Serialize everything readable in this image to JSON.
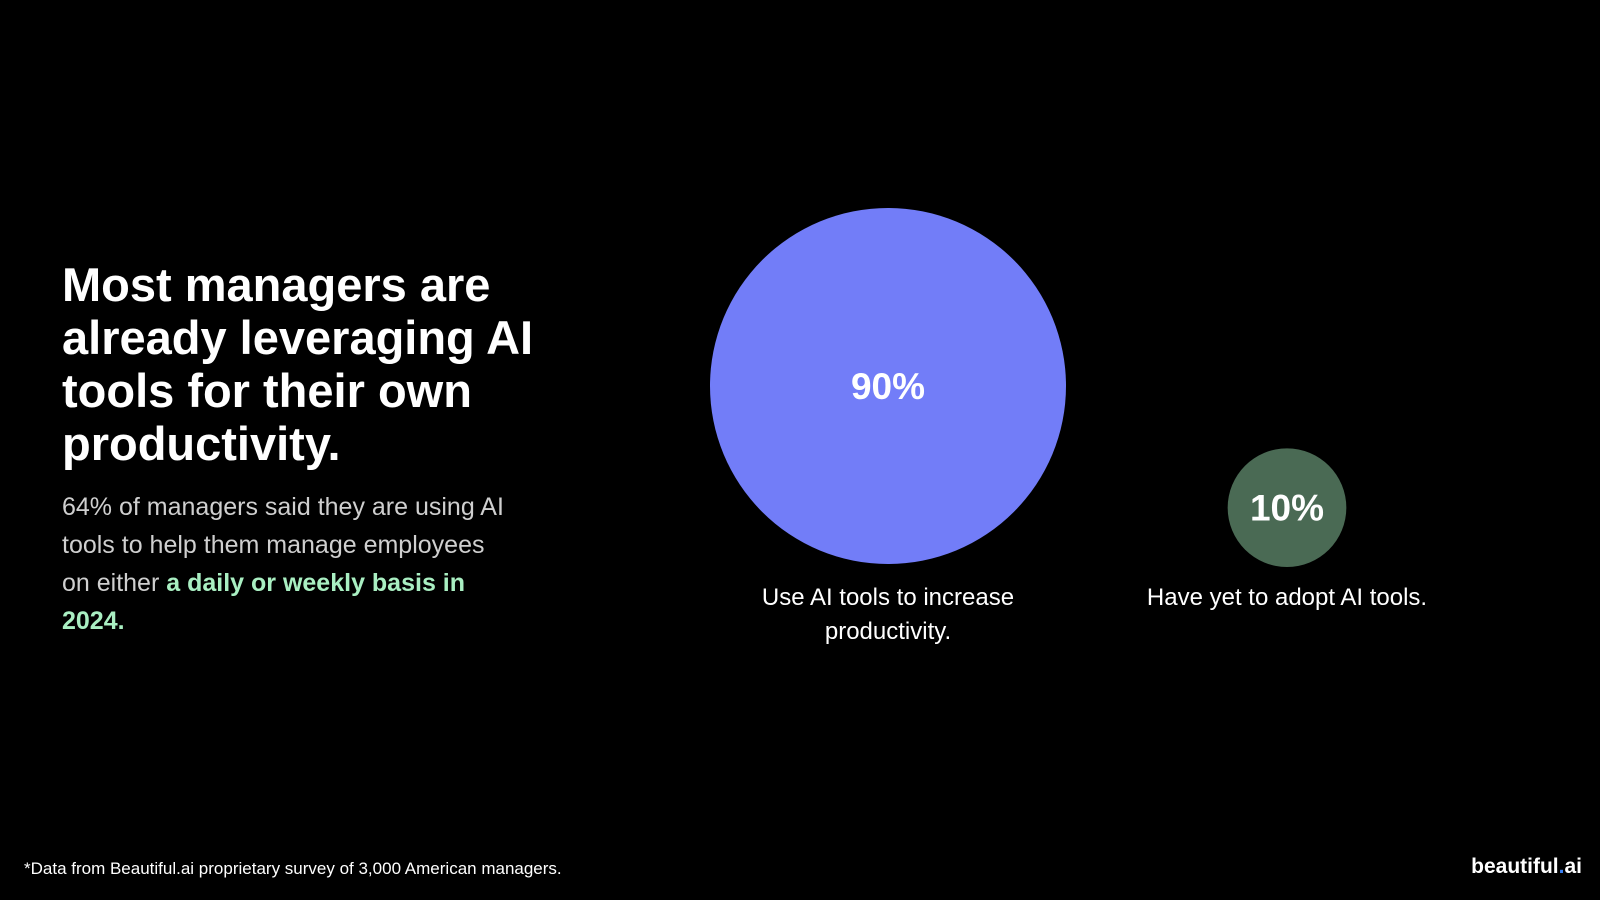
{
  "title": "Most managers are already leveraging AI tools for their own productivity.",
  "body": {
    "text": "64% of managers said they are using AI tools to help them manage employees on either ",
    "highlight": "a daily or weekly basis in 2024."
  },
  "chart_data": {
    "type": "bubble",
    "items": [
      {
        "value": 90,
        "value_label": "90%",
        "label": "Use AI tools to increase productivity.",
        "color": "#727df8"
      },
      {
        "value": 10,
        "value_label": "10%",
        "label": "Have yet to adopt AI tools.",
        "color": "#4a6a54"
      }
    ]
  },
  "footnote": "*Data from Beautiful.ai proprietary survey of 3,000 American managers.",
  "logo": {
    "name": "beautiful",
    "dot": ".",
    "suffix": "ai"
  }
}
